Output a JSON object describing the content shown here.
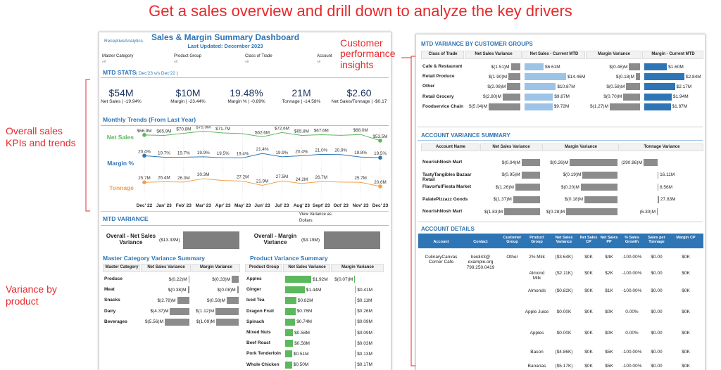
{
  "headline": "Get a sales overview and drill down to analyze the key drivers",
  "annotations": {
    "customer": "Customer performance insights",
    "kpis": "Overall sales KPIs and trends",
    "variance": "Variance by product"
  },
  "dashboard": {
    "logo": "ReceptiveAnalytics",
    "title": "Sales & Margin Summary Dashboard",
    "updated": "Last Updated: December 2023",
    "filters": [
      {
        "label": "Master Category",
        "value": "All"
      },
      {
        "label": "Product Group",
        "value": "All"
      },
      {
        "label": "Class of Trade",
        "value": "All"
      },
      {
        "label": "Account",
        "value": "All"
      }
    ],
    "mtd_stats": {
      "title": "MTD STATS",
      "subtitle": "( Dec'23 v/s Dec'22 )",
      "kpis": [
        {
          "value": "$54M",
          "label": "Net Sales | -19.94%"
        },
        {
          "value": "$10M",
          "label": "Margin | -23.44%"
        },
        {
          "value": "19.48%",
          "label": "Margin % | -0.89%"
        },
        {
          "value": "21M",
          "label": "Tonnage | -14.58%"
        },
        {
          "value": "$2.60",
          "label": "Net Sales/Tonnage | -$0.17"
        }
      ]
    },
    "mtd_variance": {
      "title": "MTD VARIANCE",
      "view_label": "View Variance as:",
      "view_value": "Dollars",
      "overall": [
        {
          "label": "Overall - Net Sales Variance",
          "value": -13.33,
          "value_label": "($13.33M)",
          "color": "#7f7f7f"
        },
        {
          "label": "Overall - Margin Variance",
          "value": -3.19,
          "value_label": "($3.19M)",
          "color": "#7f7f7f"
        }
      ]
    },
    "master_category": {
      "title": "Master Category Variance Summary",
      "columns": [
        "Master Category",
        "Net Sales Variance",
        "Margin Variance"
      ],
      "colors": [
        "#8c8c8c",
        "#8c8c8c"
      ],
      "rows": [
        {
          "name": "Produce",
          "values": [
            -0.22,
            -0.33
          ],
          "labels": [
            "$(0.22)M",
            "$(0.33)M"
          ]
        },
        {
          "name": "Meat",
          "values": [
            -0.38,
            -0.08
          ],
          "labels": [
            "$(0.38)M",
            "$(0.08)M"
          ]
        },
        {
          "name": "Snacks",
          "values": [
            -2.78,
            -0.58
          ],
          "labels": [
            "$(2.78)M",
            "$(0.58)M"
          ]
        },
        {
          "name": "Dairy",
          "values": [
            -4.37,
            -1.12
          ],
          "labels": [
            "$(4.37)M",
            "$(1.12)M"
          ]
        },
        {
          "name": "Beverages",
          "values": [
            -5.56,
            -1.09
          ],
          "labels": [
            "$(5.56)M",
            "$(1.09)M"
          ]
        }
      ]
    },
    "product": {
      "title": "Product Variance Summary",
      "columns": [
        "Product Group",
        "Net Sales Variance",
        "Margin Variance"
      ],
      "colors": [
        "#5cb85c",
        "#5cb85c"
      ],
      "rows": [
        {
          "name": "Apples",
          "values": [
            1.92,
            -0.07
          ],
          "labels": [
            "$1.92M",
            "$(0.07)M"
          ]
        },
        {
          "name": "Ginger",
          "values": [
            1.44,
            0.41
          ],
          "labels": [
            "$1.44M",
            "$0.41M"
          ]
        },
        {
          "name": "Iced Tea",
          "values": [
            0.82,
            0.11
          ],
          "labels": [
            "$0.82M",
            "$0.11M"
          ]
        },
        {
          "name": "Dragon Fruit",
          "values": [
            0.76,
            0.26
          ],
          "labels": [
            "$0.76M",
            "$0.26M"
          ]
        },
        {
          "name": "Spinach",
          "values": [
            0.74,
            0.09
          ],
          "labels": [
            "$0.74M",
            "$0.09M"
          ]
        },
        {
          "name": "Mixed Nuts",
          "values": [
            0.58,
            0.09
          ],
          "labels": [
            "$0.58M",
            "$0.09M"
          ]
        },
        {
          "name": "Beef Roast",
          "values": [
            0.58,
            0.03
          ],
          "labels": [
            "$0.58M",
            "$0.03M"
          ]
        },
        {
          "name": "Pork Tenderloin",
          "values": [
            0.51,
            0.13
          ],
          "labels": [
            "$0.51M",
            "$0.13M"
          ]
        },
        {
          "name": "Whole Chicken",
          "values": [
            0.5,
            0.17
          ],
          "labels": [
            "$0.50M",
            "$0.17M"
          ]
        }
      ]
    }
  },
  "chart_data": {
    "type": "line",
    "title": "Monthly Trends (From Last Year)",
    "categories": [
      "Dec' 22",
      "Jan' 23",
      "Feb' 23",
      "Mar' 23",
      "Apr' 23",
      "May' 23",
      "Jun' 23",
      "Jul' 23",
      "Aug' 23",
      "Sept' 23",
      "Oct' 23",
      "Nov' 23",
      "Dec' 23"
    ],
    "series": [
      {
        "name": "Net Sales",
        "color": "#5cb85c",
        "ylim": [
          50,
          80
        ],
        "values": [
          66.9,
          65.9,
          70.8,
          75.9,
          71.7,
          70,
          62.6,
          72.6,
          65.8,
          67.6,
          66,
          68.0,
          53.5
        ],
        "value_labels": [
          "$66.9M",
          "$65.9M",
          "$70.8M",
          "$75.9M",
          "$71.7M",
          null,
          "$62.6M",
          "$72.6M",
          "$65.8M",
          "$67.6M",
          null,
          "$68.0M",
          "$53.5M"
        ]
      },
      {
        "name": "Margin %",
        "color": "#2e75b6",
        "ylim": [
          18,
          23
        ],
        "values": [
          20.4,
          19.7,
          19.7,
          19.9,
          19.5,
          19.4,
          21.4,
          19.9,
          20.4,
          21.0,
          20.9,
          19.8,
          19.5
        ],
        "value_labels": [
          "20.4%",
          "19.7%",
          "19.7%",
          "19.9%",
          "19.5%",
          "19.4%",
          "21.4%",
          "19.9%",
          "20.4%",
          "21.0%",
          "20.9%",
          "19.8%",
          "19.5%"
        ]
      },
      {
        "name": "Tonnage",
        "color": "#f0a04b",
        "ylim": [
          18,
          32
        ],
        "values": [
          25.7,
          26.4,
          26.0,
          30.3,
          28,
          27.2,
          21.9,
          27.5,
          24.2,
          26.7,
          26,
          25.7,
          20.6
        ],
        "value_labels": [
          "25.7M",
          "26.4M",
          "26.0M",
          "30.3M",
          null,
          "27.2M",
          "21.9M",
          "27.5M",
          "24.2M",
          "26.7M",
          null,
          "25.7M",
          "20.6M"
        ]
      }
    ]
  },
  "right": {
    "customer_groups": {
      "title": "MTD VARIANCE BY CUSTOMER GROUPS",
      "columns": [
        "Class of Trade",
        "Net Sales Variance",
        "Net Sales - Current MTD",
        "Margin Variance",
        "Margin - Current MTD"
      ],
      "colors": [
        "#8c8c8c",
        "#9dc3e6",
        "#8c8c8c",
        "#2e75b6"
      ],
      "rows": [
        {
          "name": "Cafe & Restaurant",
          "values": [
            -1.51,
            6.61,
            -0.46,
            1.6
          ],
          "labels": [
            "$(1.51)M",
            "$6.61M",
            "$(0.46)M",
            "$1.60M"
          ]
        },
        {
          "name": "Retail Produce",
          "values": [
            -1.9,
            14.46,
            -0.18,
            2.84
          ],
          "labels": [
            "$(1.90)M",
            "$14.46M",
            "$(0.18)M",
            "$2.84M"
          ]
        },
        {
          "name": "Other",
          "values": [
            -2.08,
            10.87,
            -0.58,
            2.17
          ],
          "labels": [
            "$(2.08)M",
            "$10.87M",
            "$(0.58)M",
            "$2.17M"
          ]
        },
        {
          "name": "Retail Grocery",
          "values": [
            -2.8,
            9.87,
            -0.7,
            1.94
          ],
          "labels": [
            "$(2.80)M",
            "$9.87M",
            "$(0.70)M",
            "$1.94M"
          ]
        },
        {
          "name": "Foodservice Chain",
          "values": [
            -5.04,
            9.72,
            -1.27,
            1.87
          ],
          "labels": [
            "$(5.04)M",
            "$9.72M",
            "$(1.27)M",
            "$1.87M"
          ]
        }
      ]
    },
    "account_variance": {
      "title": "ACCOUNT VARIANCE SUMMARY",
      "columns": [
        "Account Name",
        "Net Sales Variance",
        "Margin Variance",
        "Tonnage Variance"
      ],
      "colors": [
        "#8c8c8c",
        "#8c8c8c",
        "#8c8c8c"
      ],
      "rows": [
        {
          "name": "NourishNosh Mart",
          "values": [
            -0.94,
            -0.26,
            -290.86
          ],
          "labels": [
            "$(0.94)M",
            "$(0.26)M",
            "(290.86)M"
          ]
        },
        {
          "name": "TastyTangibles Bazaar Retail",
          "values": [
            -0.95,
            -0.19,
            16.11
          ],
          "labels": [
            "$(0.95)M",
            "$(0.19)M",
            "16.11M"
          ]
        },
        {
          "name": "FlavorfulFiesta Market",
          "values": [
            -1.26,
            -0.2,
            8.56
          ],
          "labels": [
            "$(1.26)M",
            "$(0.20)M",
            "8.56M"
          ]
        },
        {
          "name": "PalatePizzazz Goods",
          "values": [
            -1.37,
            -0.18,
            27.83
          ],
          "labels": [
            "$(1.37)M",
            "$(0.18)M",
            "27.83M"
          ]
        },
        {
          "name": "NourishNosh Mart",
          "values": [
            -1.83,
            -0.28,
            -6.3
          ],
          "labels": [
            "$(1.83)M",
            "$(0.28)M",
            "(6.30)M"
          ]
        }
      ]
    },
    "account_details": {
      "title": "ACCOUNT DETAILS",
      "columns": [
        "Account",
        "Contact",
        "Customer Group",
        "Product Group",
        "Net Sales Variance",
        "Net Sales CP",
        "Net Sales PP",
        "% Sales Growth",
        "Sales per Tonnage",
        "Margin CP"
      ],
      "rows": [
        {
          "account": "CulinaryCanvas Corner Cafe",
          "contact": "heidi43@ example.org 799.250.0419",
          "customer_group": "Other",
          "cells": [
            "2% Milk",
            "($3.64K)",
            "$0K",
            "$4K",
            "-100.00%",
            "$0.00",
            "$0K"
          ]
        },
        {
          "cells": [
            "Almond Milk",
            "($2.11K)",
            "$0K",
            "$2K",
            "-100.00%",
            "$0.00",
            "$0K"
          ]
        },
        {
          "cells": [
            "Almonds",
            "($0.82K)",
            "$0K",
            "$1K",
            "-100.00%",
            "$0.00",
            "$0K"
          ]
        },
        {
          "cells": [
            "Apple Juice",
            "$0.00K",
            "$0K",
            "$0K",
            "0.00%",
            "$0.00",
            "$0K"
          ]
        },
        {
          "cells": [
            "Apples",
            "$0.00K",
            "$0K",
            "$0K",
            "0.00%",
            "$0.00",
            "$0K"
          ]
        },
        {
          "cells": [
            "Bacon",
            "($4.86K)",
            "$0K",
            "$5K",
            "-100.00%",
            "$0.00",
            "$0K"
          ]
        },
        {
          "cells": [
            "Bananas",
            "($5.17K)",
            "$0K",
            "$5K",
            "-100.00%",
            "$0.00",
            "$0K"
          ]
        }
      ]
    }
  }
}
